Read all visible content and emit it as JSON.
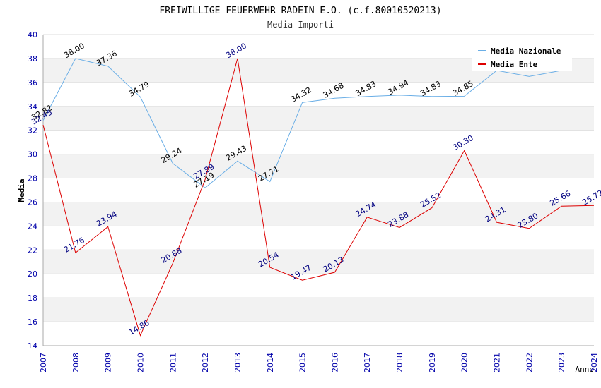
{
  "chart_data": {
    "type": "line",
    "title": "FREIWILLIGE FEUERWEHR RADEIN E.O. (c.f.80010520213)",
    "subtitle": "Media Importi",
    "xlabel": "Anno",
    "ylabel": "Media",
    "ylim": [
      14,
      40
    ],
    "ytick_step": 2,
    "grid": true,
    "legend_position": "top-right",
    "x": [
      "2007",
      "2008",
      "2009",
      "2010",
      "2011",
      "2012",
      "2013",
      "2014",
      "2015",
      "2016",
      "2017",
      "2018",
      "2019",
      "2020",
      "2021",
      "2022",
      "2023",
      "2024"
    ],
    "series": [
      {
        "name": "Media Nazionale",
        "color": "#6aaee6",
        "label_color": "#000000",
        "values": [
          32.82,
          38.0,
          37.36,
          34.79,
          29.24,
          27.19,
          29.43,
          27.71,
          34.32,
          34.68,
          34.83,
          34.94,
          34.83,
          34.85,
          37.0,
          36.5,
          37.0,
          null
        ],
        "labels": [
          "32.82",
          "38.00",
          "37.36",
          "34.79",
          "29.24",
          "27.19",
          "29.43",
          "27.71",
          "34.32",
          "34.68",
          "34.83",
          "34.94",
          "34.83",
          "34.85",
          "",
          "",
          "",
          ""
        ]
      },
      {
        "name": "Media Ente",
        "color": "#dd0000",
        "label_color": "#000080",
        "values": [
          32.45,
          21.76,
          23.94,
          14.86,
          20.88,
          27.89,
          38.0,
          20.54,
          19.47,
          20.13,
          24.74,
          23.88,
          25.52,
          30.3,
          24.31,
          23.8,
          25.66,
          25.72
        ],
        "labels": [
          "32.45",
          "21.76",
          "23.94",
          "14.86",
          "20.88",
          "27.89",
          "38.00",
          "20.54",
          "19.47",
          "20.13",
          "24.74",
          "23.88",
          "25.52",
          "30.30",
          "24.31",
          "23.80",
          "25.66",
          "25.72"
        ]
      }
    ],
    "colors": {
      "axis_tick_label": "#0000aa",
      "grid_band": "#f2f2f2",
      "grid_line": "#dddddd",
      "axis_line": "#aaaaaa"
    }
  }
}
